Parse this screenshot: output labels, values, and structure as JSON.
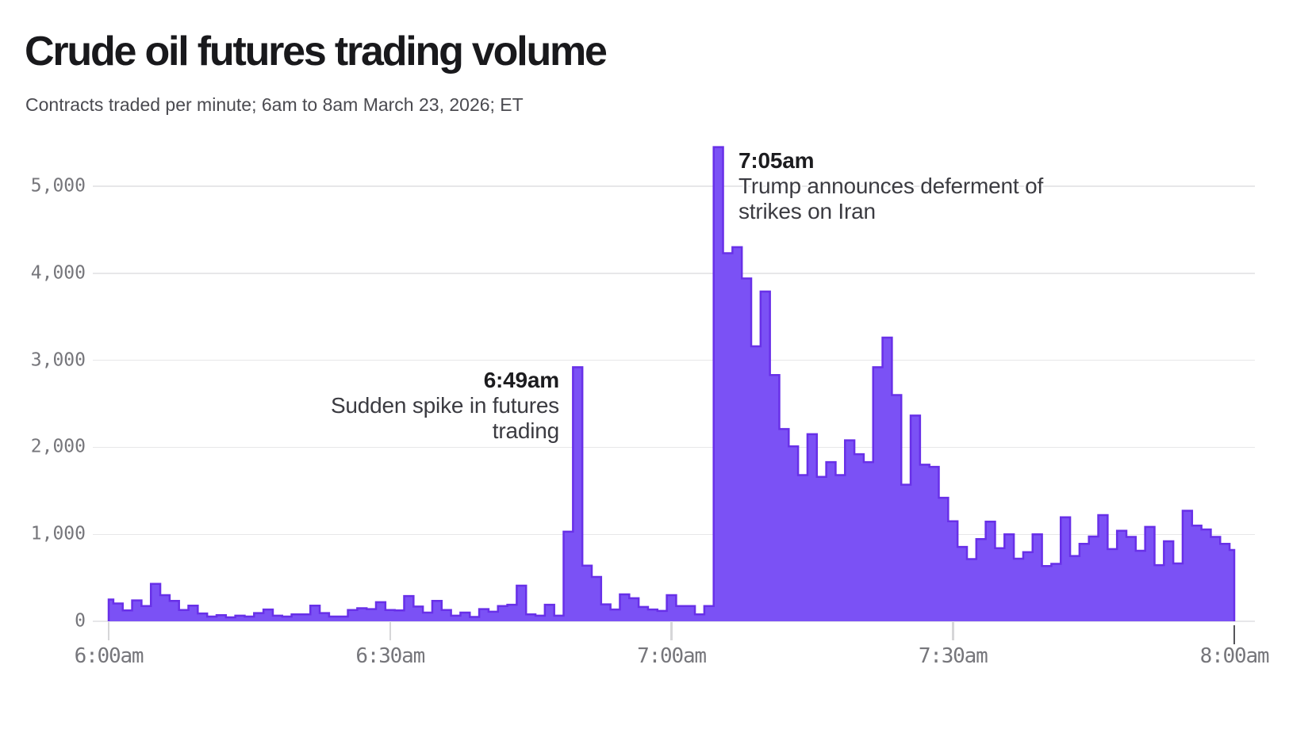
{
  "chart_data": {
    "type": "bar",
    "title": "Crude oil futures trading volume",
    "subtitle": "Contracts traded per minute; 6am to 8am March 23, 2026; ET",
    "xlabel": "",
    "ylabel": "",
    "x_start": "6:00am",
    "x_end": "8:00am",
    "x_interval_minutes": 1,
    "ylim": [
      0,
      5500
    ],
    "grid": "horizontal",
    "yticks": [
      "0",
      "1,000",
      "2,000",
      "3,000",
      "4,000",
      "5,000"
    ],
    "xticks": [
      "6:00am",
      "6:30am",
      "7:00am",
      "7:30am",
      "8:00am"
    ],
    "bar_fill_color": "#7b51f5",
    "bar_stroke_color": "#6830e8",
    "values": [
      250,
      205,
      125,
      240,
      175,
      430,
      300,
      235,
      130,
      180,
      90,
      55,
      70,
      45,
      65,
      55,
      95,
      135,
      65,
      55,
      80,
      80,
      180,
      95,
      55,
      55,
      130,
      150,
      140,
      220,
      130,
      125,
      290,
      170,
      100,
      235,
      130,
      65,
      100,
      50,
      140,
      110,
      175,
      190,
      410,
      80,
      65,
      190,
      65,
      1030,
      2920,
      640,
      510,
      195,
      135,
      310,
      265,
      165,
      135,
      120,
      300,
      175,
      175,
      80,
      175,
      5450,
      4230,
      4300,
      3940,
      3160,
      3790,
      2830,
      2210,
      2010,
      1680,
      2150,
      1660,
      1830,
      1680,
      2080,
      1920,
      1830,
      2920,
      3260,
      2600,
      1570,
      2365,
      1800,
      1775,
      1420,
      1150,
      855,
      715,
      945,
      1145,
      840,
      1000,
      720,
      795,
      1000,
      635,
      660,
      1195,
      750,
      890,
      975,
      1220,
      830,
      1040,
      970,
      810,
      1085,
      645,
      920,
      665,
      1270,
      1100,
      1055,
      970,
      890,
      820
    ],
    "annotations": [
      {
        "time": "6:49am",
        "lines": [
          "Sudden spike in futures",
          "trading"
        ],
        "value_at_time": 1030
      },
      {
        "time": "7:05am",
        "lines": [
          "Trump announces deferment of",
          "strikes on Iran"
        ],
        "value_at_time": 5450
      }
    ]
  }
}
